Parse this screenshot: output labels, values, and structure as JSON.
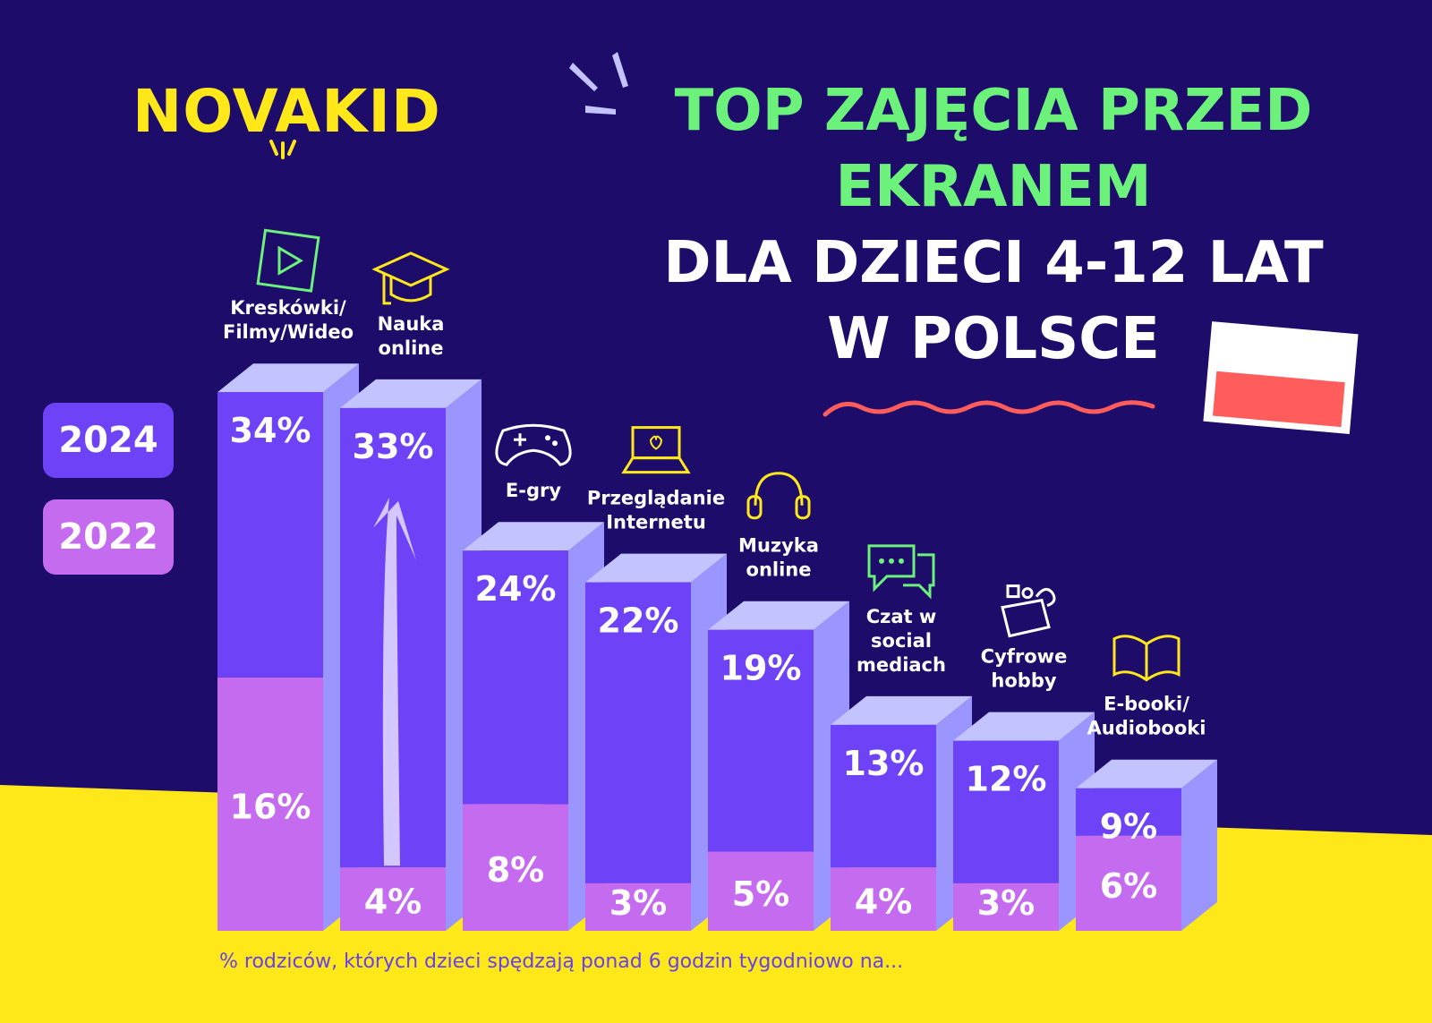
{
  "brand": {
    "logo_text": "NOVAKID"
  },
  "title": {
    "line1": "TOP ZAJĘCIA PRZED",
    "line2": "EKRANEM",
    "line3": "DLA DZIECI 4-12 LAT",
    "line4": "W POLSCE"
  },
  "legend": {
    "year_2024": "2024",
    "year_2022": "2022"
  },
  "colors": {
    "background": "#1e0c6b",
    "yellow": "#ffe81a",
    "bar_2024": "#6e42f6",
    "bar_2022": "#c56bf0",
    "bar_top": "#c3c4ff",
    "bar_side": "#9a95ff",
    "green": "#6cf27a",
    "accent_red": "#ff5c5c"
  },
  "footnote": "% rodziców, których dzieci spędzają ponad 6 godzin tygodniowo na...",
  "chart_data": {
    "type": "bar",
    "categories": [
      "Kreskówki/ Filmy/Wideo",
      "Nauka online",
      "E-gry",
      "Przeglądanie Internetu",
      "Muzyka online",
      "Czat w social mediach",
      "Cyfrowe hobby",
      "E-booki/ Audiobooki"
    ],
    "category_lines": [
      [
        "Kreskówki/",
        "Filmy/Wideo"
      ],
      [
        "Nauka",
        "online"
      ],
      [
        "E-gry"
      ],
      [
        "Przeglądanie",
        "Internetu"
      ],
      [
        "Muzyka",
        "online"
      ],
      [
        "Czat w",
        "social",
        "mediach"
      ],
      [
        "Cyfrowe",
        "hobby"
      ],
      [
        "E-booki/",
        "Audiobooki"
      ]
    ],
    "icons": [
      "play-icon",
      "graduation-cap-icon",
      "gamepad-icon",
      "laptop-icon",
      "headphones-icon",
      "chat-icon",
      "hobby-box-icon",
      "book-icon"
    ],
    "series": [
      {
        "name": "2024",
        "values": [
          34,
          33,
          24,
          22,
          19,
          13,
          12,
          9
        ],
        "labels": [
          "34%",
          "33%",
          "24%",
          "22%",
          "19%",
          "13%",
          "12%",
          "9%"
        ]
      },
      {
        "name": "2022",
        "values": [
          16,
          4,
          8,
          3,
          5,
          4,
          3,
          6
        ],
        "labels": [
          "16%",
          "4%",
          "8%",
          "3%",
          "5%",
          "4%",
          "3%",
          "6%"
        ]
      }
    ],
    "highlight": "Nauka online"
  }
}
